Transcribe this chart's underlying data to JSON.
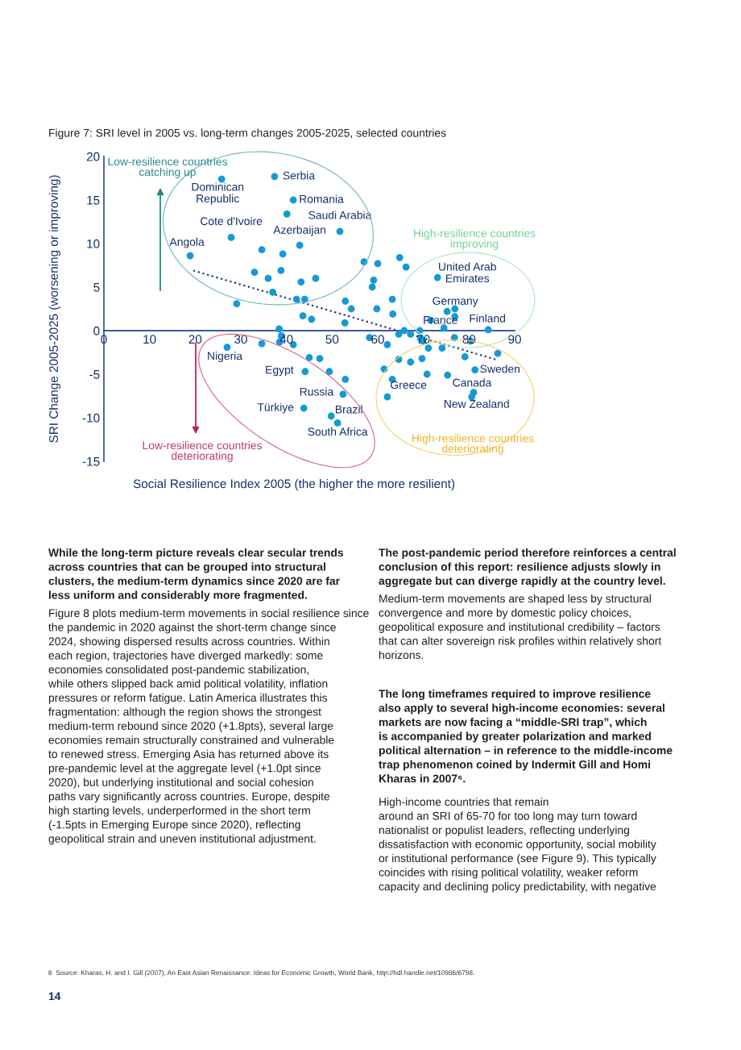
{
  "chart_data": {
    "type": "scatter",
    "title": "Figure 7: SRI level in 2005 vs. long-term changes 2005-2025, selected countries",
    "xlabel": "Social Resilience Index 2005 (the higher the more resilient)",
    "ylabel": "SRI Change 2005-2025 (worsening or improving)",
    "xlim": [
      0,
      90
    ],
    "ylim": [
      -15,
      20
    ],
    "xticks": [
      0,
      10,
      20,
      30,
      40,
      50,
      60,
      70,
      80,
      90
    ],
    "yticks": [
      -15,
      -10,
      -5,
      0,
      5,
      10,
      15,
      20
    ],
    "grid": false,
    "series": [
      {
        "marker": "circle",
        "color": "#149ad4",
        "x": [
          25.8,
          37.4,
          41.5,
          40.1,
          27.9,
          42.9,
          51.7,
          18.9,
          34.6,
          39.2,
          33.0,
          38.8,
          36.0,
          43.2,
          46.4,
          37.0,
          29.1,
          42.2,
          44.0,
          43.6,
          45.5,
          38.4,
          38.9,
          38.5,
          41.5,
          34.6,
          27.0,
          64.8,
          66.2,
          57.0,
          60.0,
          59.1,
          58.8,
          52.9,
          54.2,
          59.8,
          63.2,
          63.3,
          52.8,
          73.1,
          75.2,
          76.9,
          76.9,
          71.6,
          74.5,
          84.2,
          45.0,
          47.3,
          44.1,
          49.4,
          52.9,
          52.4,
          43.8,
          49.8,
          51.2,
          58.2,
          62.1,
          64.6,
          65.8,
          67.2,
          69.2,
          69.4,
          69.9,
          71.1,
          74.1,
          76.8,
          80.3,
          79.1,
          86.3,
          64.6,
          67.2,
          69.7,
          61.4,
          70.8,
          75.3,
          63.2,
          81.3,
          81.0,
          80.6,
          62.1
        ],
        "values": [
          17.4,
          17.7,
          15.0,
          13.4,
          10.7,
          9.8,
          11.4,
          8.6,
          9.3,
          8.8,
          6.7,
          6.9,
          6.0,
          5.6,
          6.0,
          4.4,
          3.1,
          3.6,
          3.6,
          1.7,
          1.3,
          0.2,
          -0.6,
          -1.3,
          -1.6,
          -1.5,
          -1.9,
          8.4,
          7.3,
          7.9,
          7.7,
          5.8,
          5.0,
          3.4,
          2.5,
          2.5,
          3.6,
          1.9,
          0.9,
          6.1,
          2.2,
          2.5,
          1.6,
          1.2,
          0.3,
          0.1,
          -3.1,
          -3.2,
          -4.7,
          -4.7,
          -5.6,
          -7.3,
          -8.9,
          -9.8,
          -10.6,
          -0.8,
          -1.6,
          -0.4,
          0.0,
          -0.4,
          0.0,
          -0.9,
          -1.2,
          -2.0,
          -2.0,
          -0.8,
          -1.2,
          -3.0,
          -2.6,
          -3.3,
          -3.6,
          -3.2,
          -4.4,
          -5.0,
          -5.1,
          -5.6,
          -4.5,
          -7.1,
          -7.6,
          -7.6
        ]
      },
      {
        "type": "line",
        "color": "#1b3a7a",
        "line_style": "dotted",
        "x": [
          19.6,
          85.8
        ],
        "values": [
          6.9,
          -3.3
        ]
      }
    ],
    "annotations": [
      {
        "text": "Dominican\nRepublic",
        "x": 25.8,
        "y": 17.4
      },
      {
        "text": "Serbia",
        "x": 37.4,
        "y": 17.7
      },
      {
        "text": "Romania",
        "x": 41.5,
        "y": 15.0
      },
      {
        "text": "Saudi Arabia",
        "x": 51.7,
        "y": 11.4
      },
      {
        "text": "Azerbaijan",
        "x": 42.9,
        "y": 9.8
      },
      {
        "text": "Cote d'Ivoire",
        "x": 27.9,
        "y": 10.7
      },
      {
        "text": "Angola",
        "x": 18.9,
        "y": 8.6
      },
      {
        "text": "United Arab\nEmirates",
        "x": 73.1,
        "y": 6.1
      },
      {
        "text": "Germany",
        "x": 75.2,
        "y": 2.2
      },
      {
        "text": "France",
        "x": 71.6,
        "y": 1.2
      },
      {
        "text": "Finland",
        "x": 84.2,
        "y": 0.1
      },
      {
        "text": "Nigeria",
        "x": 27.0,
        "y": -1.9
      },
      {
        "text": "Egypt",
        "x": 44.1,
        "y": -4.7
      },
      {
        "text": "Russia",
        "x": 52.4,
        "y": -7.3
      },
      {
        "text": "Türkiye",
        "x": 43.8,
        "y": -8.9
      },
      {
        "text": "Brazil",
        "x": 49.8,
        "y": -9.8
      },
      {
        "text": "South Africa",
        "x": 51.2,
        "y": -10.6
      },
      {
        "text": "Greece",
        "x": 63.2,
        "y": -5.6
      },
      {
        "text": "Sweden",
        "x": 81.3,
        "y": -4.5
      },
      {
        "text": "Canada",
        "x": 81.0,
        "y": -7.1
      },
      {
        "text": "New Zealand",
        "x": 80.6,
        "y": -7.6
      },
      "Low-resilience countries\ncatching up",
      "High-resilience countries\nimproving",
      "Low-resilience countries\ndeteriorating",
      "High-resilience countries\ndeteriorating",
      "While the long-term picture reveals clear secular trends\nacross countries that can be grouped into structural\nclusters, the medium-term dynamics since 2020 are far\nless uniform and considerably more fragmented.",
      "Figure 8 plots medium-term movements in social resilience since\nthe pandemic in 2020 against the short-term change since\n2024, showing dispersed results across countries. Within\neach region, trajectories have diverged markedly: some\neconomies consolidated post-pandemic stabilization,\nwhile others slipped back amid political volatility, inflation\npressures or reform fatigue. Latin America illustrates this\nfragmentation: although the region shows the strongest\nmedium-term rebound since 2020 (+1.8pts), several large\neconomies remain structurally constrained and vulnerable\nto renewed stress. Emerging Asia has returned above its\npre-pandemic level at the aggregate level (+1.0pt since\n2020), but underlying institutional and social cohesion\npaths vary significantly across countries. Europe, despite\nhigh starting levels, underperformed in the short term\n(-1.5pts in Emerging Europe since 2020), reflecting\ngeopolitical strain and uneven institutional adjustment.",
      "The post-pandemic period therefore reinforces a central\nconclusion of this report: resilience adjusts slowly in\naggregate but can diverge rapidly at the country level.",
      "Medium-term movements are shaped less by structural\nconvergence and more by domestic policy choices,\ngeopolitical exposure and institutional credibility – factors\nthat can alter sovereign risk profiles within relatively short\nhorizons.",
      "The long timeframes required to improve resilience\nalso apply to several high-income economies: several\nmarkets are now facing a “middle-SRI trap”, which\nis accompanied by greater polarization and marked\npolitical alternation – in reference to the middle-income\ntrap phenomenon coined by Indermit Gill and Homi\nKharas in 2007⁶.",
      "High-income countries that remain\naround an SRI of 65-70 for too long may turn toward\nnationalist or populist leaders, reflecting underlying\ndissatisfaction with economic opportunity, social mobility\nor institutional performance (see Figure 9). This typically\ncoincides with rising political volatility, weaker reform\ncapacity and declining policy predictability, with negative",
      "6  Source: Kharas, H. and I. Gill (2007), An East Asian Renaissance: Ideas for Economic Growth, World Bank, http://hdl.handle.net/10986/6798.",
      "14"
    ]
  }
}
